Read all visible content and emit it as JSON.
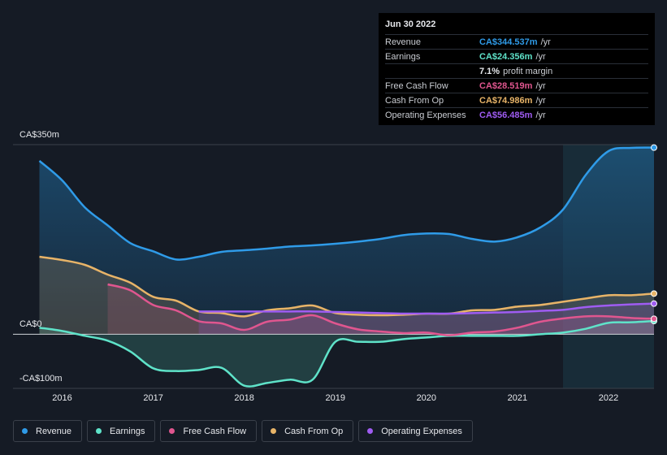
{
  "chart_data": {
    "type": "line",
    "x": [
      2015.75,
      2016,
      2016.25,
      2016.5,
      2016.75,
      2017,
      2017.25,
      2017.5,
      2017.75,
      2018,
      2018.25,
      2018.5,
      2018.75,
      2019,
      2019.25,
      2019.5,
      2019.75,
      2020,
      2020.25,
      2020.5,
      2020.75,
      2021,
      2021.25,
      2021.5,
      2021.75,
      2022,
      2022.25,
      2022.5
    ],
    "series": [
      {
        "name": "Revenue",
        "color": "#2f9be8",
        "values": [
          320,
          284,
          234,
          201,
          168,
          153,
          138,
          143,
          152,
          155,
          158,
          162,
          164,
          167,
          171,
          176,
          183,
          186,
          185,
          176,
          171,
          179,
          197,
          230,
          294,
          338,
          344,
          344.537
        ]
      },
      {
        "name": "Earnings",
        "color": "#5fe3c9",
        "values": [
          12,
          6,
          -3,
          -12,
          -32,
          -63,
          -68,
          -66,
          -62,
          -95,
          -90,
          -84,
          -84,
          -14,
          -14,
          -14,
          -9,
          -6,
          -3,
          -3,
          -3,
          -3,
          0,
          3,
          10,
          21,
          22,
          24.356
        ]
      },
      {
        "name": "Free Cash Flow",
        "color": "#e0568f",
        "values": [
          null,
          null,
          null,
          92,
          81,
          54,
          44,
          24,
          20,
          8,
          23,
          27,
          35,
          20,
          9,
          5,
          2,
          3,
          -2,
          3,
          5,
          12,
          23,
          29,
          33,
          33,
          30,
          28.519
        ]
      },
      {
        "name": "Cash From Op",
        "color": "#e8b468",
        "values": [
          143,
          137,
          128,
          110,
          95,
          69,
          62,
          42,
          39,
          33,
          44,
          48,
          53,
          39,
          36,
          35,
          36,
          38,
          38,
          44,
          45,
          51,
          54,
          60,
          66,
          72,
          72,
          74.986
        ]
      },
      {
        "name": "Operating Expenses",
        "color": "#9f5cf2",
        "values": [
          null,
          null,
          null,
          null,
          null,
          null,
          null,
          42,
          42,
          42,
          42,
          42,
          42,
          41,
          40,
          39,
          38,
          38,
          38,
          39,
          40,
          41,
          43,
          45,
          50,
          53,
          55,
          56.485
        ]
      }
    ],
    "xlim": [
      2015.46,
      2022.5
    ],
    "xticks": [
      2016,
      2017,
      2018,
      2019,
      2020,
      2021,
      2022
    ],
    "ylim": [
      -100,
      350
    ],
    "yticks": [
      {
        "value": 350,
        "label": "CA$350m"
      },
      {
        "value": 0,
        "label": "CA$0"
      },
      {
        "value": -100,
        "label": "-CA$100m"
      }
    ],
    "grid": true,
    "tooltip": {
      "date": "Jun 30 2022",
      "rows": [
        {
          "label": "Revenue",
          "value": "CA$344.537m",
          "unit": "/yr"
        },
        {
          "label": "Earnings",
          "value": "CA$24.356m",
          "unit": "/yr"
        },
        {
          "label": "Free Cash Flow",
          "value": "CA$28.519m",
          "unit": "/yr"
        },
        {
          "label": "Cash From Op",
          "value": "CA$74.986m",
          "unit": "/yr"
        },
        {
          "label": "Operating Expenses",
          "value": "CA$56.485m",
          "unit": "/yr"
        }
      ],
      "margin": {
        "value": "7.1%",
        "text": "profit margin"
      }
    }
  }
}
